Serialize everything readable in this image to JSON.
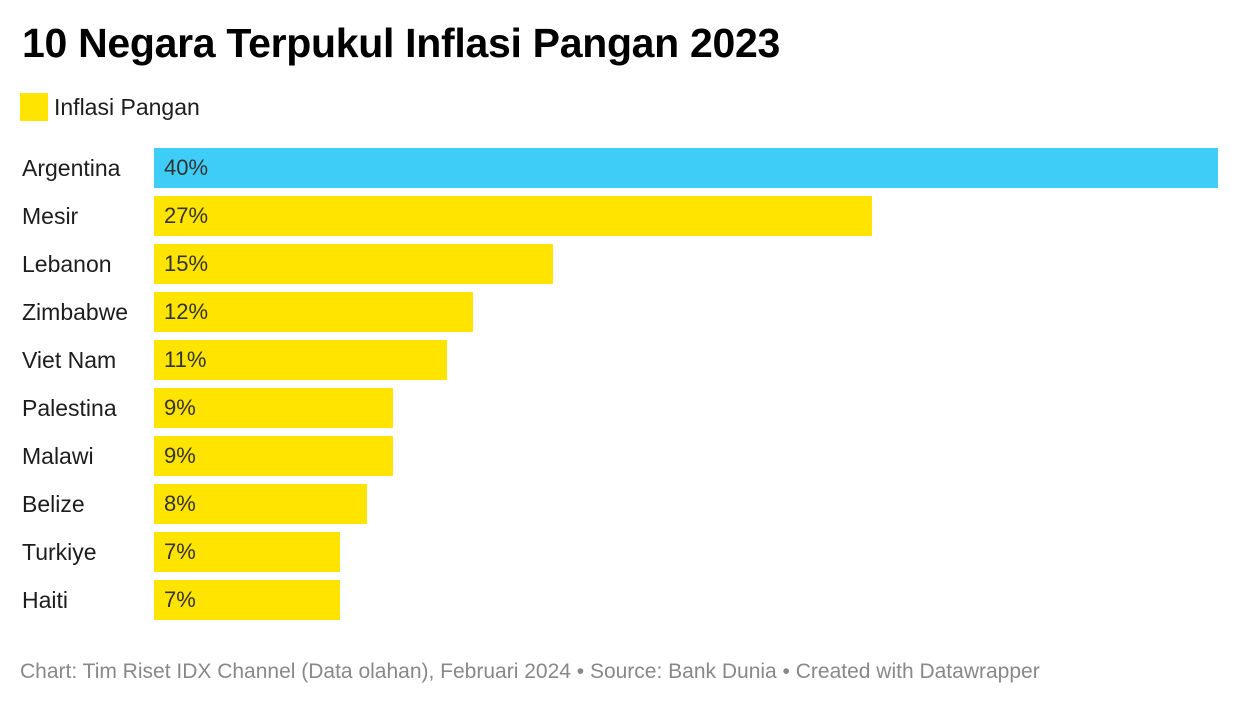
{
  "title": "10 Negara Terpukul Inflasi Pangan 2023",
  "legend": {
    "label": "Inflasi Pangan",
    "color": "#ffe400"
  },
  "colors": {
    "default_bar": "#ffe400",
    "highlight_bar": "#3ecdf7"
  },
  "chart_data": {
    "type": "bar",
    "orientation": "horizontal",
    "title": "10 Negara Terpukul Inflasi Pangan 2023",
    "xlabel": "",
    "ylabel": "",
    "xlim": [
      0,
      40
    ],
    "grid": false,
    "legend_position": "top-left",
    "categories": [
      "Argentina",
      "Mesir",
      "Lebanon",
      "Zimbabwe",
      "Viet Nam",
      "Palestina",
      "Malawi",
      "Belize",
      "Turkiye",
      "Haiti"
    ],
    "series": [
      {
        "name": "Inflasi Pangan",
        "values": [
          40,
          27,
          15,
          12,
          11,
          9,
          9,
          8,
          7,
          7
        ],
        "labels": [
          "40%",
          "27%",
          "15%",
          "12%",
          "11%",
          "9%",
          "9%",
          "8%",
          "7%",
          "7%"
        ]
      }
    ],
    "highlight_category": "Argentina"
  },
  "footer": "Chart: Tim Riset IDX Channel (Data olahan), Februari 2024 • Source: Bank Dunia • Created with Datawrapper"
}
